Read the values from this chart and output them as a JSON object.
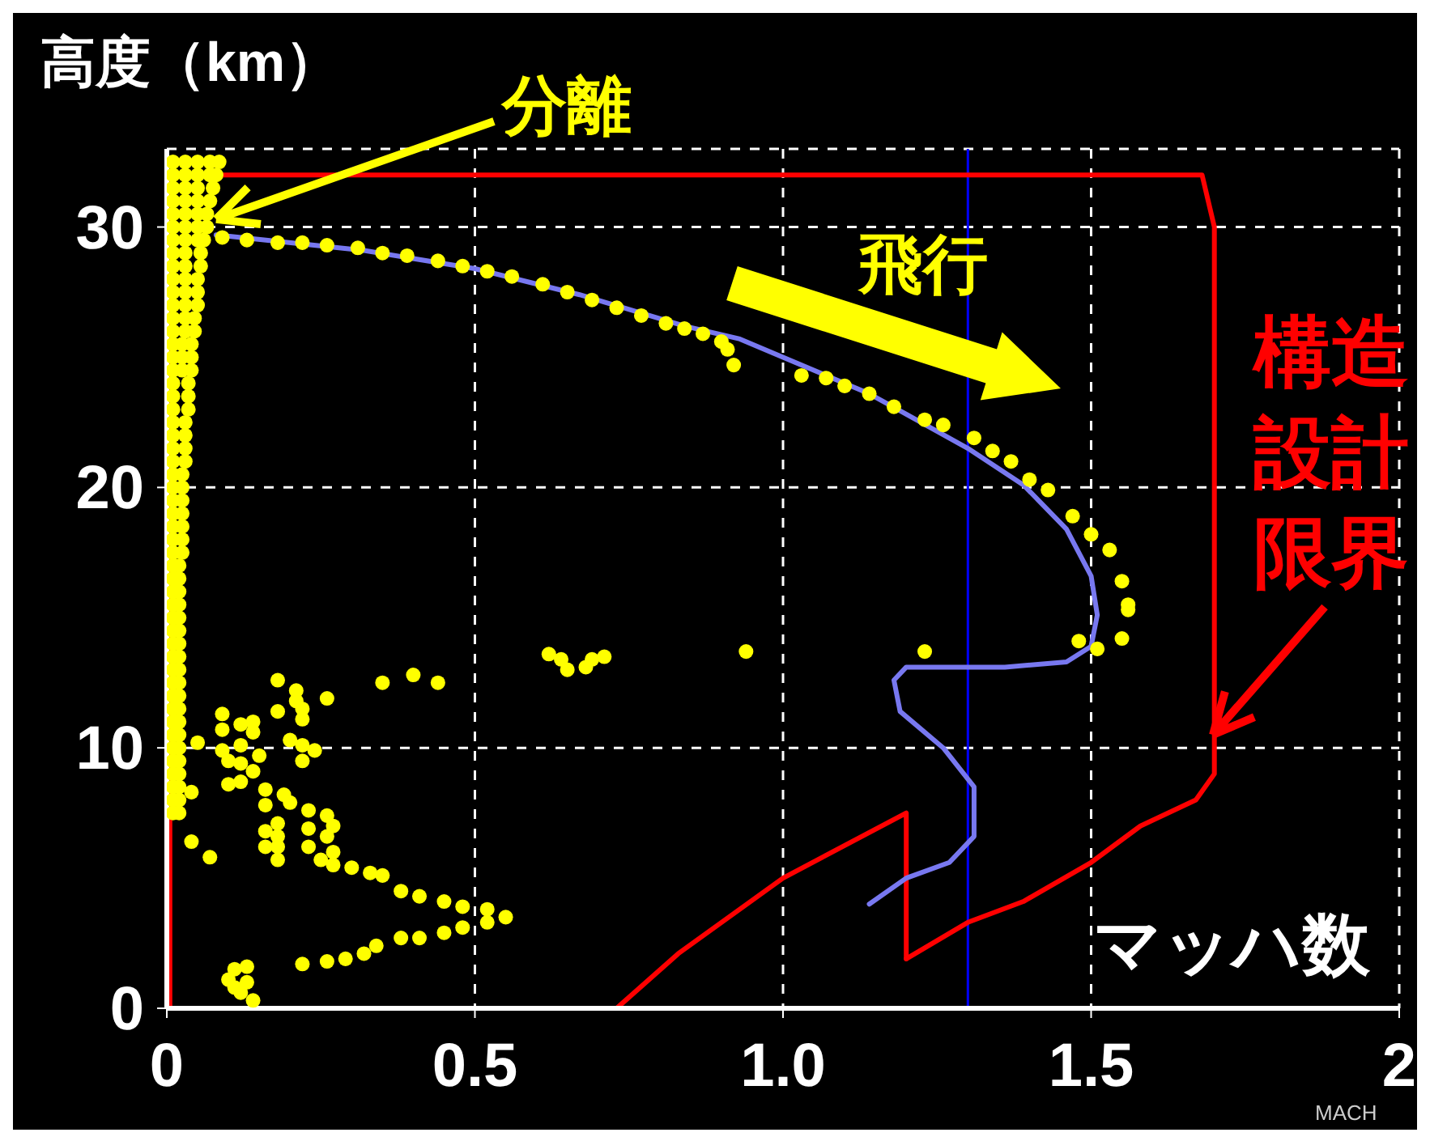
{
  "chart_data": {
    "type": "scatter",
    "ylabel": "高度（km）",
    "xlabel": "マッハ数",
    "annotations": [
      {
        "text": "分離",
        "x": 0.08,
        "y": 30.3
      },
      "飛行",
      "構造設計限界",
      "MACH"
    ],
    "xlim": [
      0,
      2
    ],
    "xticks": [
      0,
      0.5,
      {
        "value": 1,
        "label": "1.0"
      },
      1.5,
      2
    ],
    "ylim": [
      0,
      33
    ],
    "yticks": [
      0,
      10,
      20,
      30
    ],
    "grid": true,
    "marker": "circle",
    "line_style": "solid",
    "ref_lines": [
      {
        "axis": "x",
        "value": 1.3,
        "color": "#0000ff"
      }
    ],
    "series": [
      {
        "type": "line",
        "marker": "none",
        "color": "#ff0000",
        "x": [
          0.005,
          0.005,
          1.68,
          1.7,
          1.7,
          1.67,
          1.58,
          1.5,
          1.39,
          1.3,
          1.2
        ],
        "values": [
          0,
          32.0,
          32.0,
          30.0,
          9.0,
          8.0,
          7.0,
          5.6,
          4.1,
          3.3,
          1.9
        ]
      },
      {
        "type": "line",
        "marker": "none",
        "color": "#ff0000",
        "x": [
          0.005,
          0.73,
          0.83,
          1.0,
          1.2,
          1.2
        ],
        "values": [
          0,
          0,
          2.1,
          5.0,
          7.5,
          1.9
        ]
      },
      {
        "type": "line",
        "marker": "none",
        "color": "#7878f0",
        "x": [
          0.08,
          0.32,
          0.5,
          0.67,
          0.84,
          0.93,
          1.0,
          1.14,
          1.3,
          1.39,
          1.46,
          1.5,
          1.51,
          1.5,
          1.46,
          1.36,
          1.2,
          1.18,
          1.19,
          1.26,
          1.31,
          1.31,
          1.27,
          1.2,
          1.14
        ],
        "values": [
          29.7,
          29.1,
          28.4,
          27.4,
          26.2,
          25.7,
          25.0,
          23.6,
          21.5,
          20.1,
          18.4,
          16.6,
          15.1,
          13.9,
          13.3,
          13.1,
          13.1,
          12.6,
          11.4,
          10.0,
          8.5,
          6.6,
          5.6,
          5.0,
          4.0
        ]
      },
      {
        "type": "scatter",
        "color": "#ffff00",
        "x": [
          0.01,
          0.03,
          0.05,
          0.07,
          0.085,
          0.01,
          0.03,
          0.05,
          0.07,
          0.08,
          0.01,
          0.03,
          0.05,
          0.075,
          0.01,
          0.03,
          0.05,
          0.07,
          0.01,
          0.03,
          0.05,
          0.065,
          0.01,
          0.03,
          0.05,
          0.065,
          0.01,
          0.03,
          0.05,
          0.06,
          0.01,
          0.03,
          0.055,
          0.01,
          0.03,
          0.055,
          0.01,
          0.03,
          0.05,
          0.01,
          0.03,
          0.05,
          0.01,
          0.03,
          0.05,
          0.01,
          0.03,
          0.045,
          0.01,
          0.03,
          0.045,
          0.01,
          0.025,
          0.04,
          0.01,
          0.025,
          0.04,
          0.01,
          0.025,
          0.04,
          0.01,
          0.035,
          0.01,
          0.035,
          0.01,
          0.035,
          0.01,
          0.03,
          0.01,
          0.03,
          0.01,
          0.03,
          0.01,
          0.03,
          0.01,
          0.025,
          0.01,
          0.025,
          0.01,
          0.025,
          0.01,
          0.025,
          0.01,
          0.025,
          0.01,
          0.025,
          0.01,
          0.025,
          0.01,
          0.02,
          0.01,
          0.02,
          0.01,
          0.02,
          0.01,
          0.02,
          0.01,
          0.02,
          0.01,
          0.02,
          0.01,
          0.02,
          0.01,
          0.02,
          0.01,
          0.02,
          0.01,
          0.02,
          0.01,
          0.02,
          0.01,
          0.02,
          0.01,
          0.02,
          0.01,
          0.02,
          0.01,
          0.02,
          0.01,
          0.02,
          0.01,
          0.02,
          0.01,
          0.02,
          0.01,
          0.02,
          0.01,
          0.02
        ],
        "values": [
          32.5,
          32.5,
          32.5,
          32.5,
          32.5,
          32,
          32,
          32,
          32,
          32,
          31.5,
          31.5,
          31.5,
          31.5,
          31,
          31,
          31,
          31,
          30.5,
          30.5,
          30.5,
          30.5,
          30,
          30,
          30,
          30,
          29.5,
          29.5,
          29.5,
          29.5,
          29,
          29,
          29,
          28.5,
          28.5,
          28.5,
          28,
          28,
          28,
          27.5,
          27.5,
          27.5,
          27,
          27,
          27,
          26.5,
          26.5,
          26.5,
          26,
          26,
          26,
          25.5,
          25.5,
          25.5,
          25,
          25,
          25,
          24.5,
          24.5,
          24.5,
          24,
          24,
          23.5,
          23.5,
          23,
          23,
          22.5,
          22.5,
          22,
          22,
          21.5,
          21.5,
          21,
          21,
          20.5,
          20.5,
          20,
          20,
          19.5,
          19.5,
          19,
          19,
          18.5,
          18.5,
          18,
          18,
          17.5,
          17.5,
          17,
          17,
          16.5,
          16.5,
          16,
          16,
          15.5,
          15.5,
          15,
          15,
          14.5,
          14.5,
          14,
          14,
          13.5,
          13.5,
          13,
          13,
          12.5,
          12.5,
          12,
          12,
          11.5,
          11.5,
          11,
          11,
          10.5,
          10.5,
          10,
          10,
          9.5,
          9.5,
          9,
          9,
          8.5,
          8.5,
          8,
          8,
          7.5,
          7.5
        ]
      },
      {
        "type": "scatter",
        "color": "#ffff00",
        "x": [
          0.09,
          0.13,
          0.18,
          0.22,
          0.26,
          0.31,
          0.35,
          0.39,
          0.44,
          0.48,
          0.52,
          0.56,
          0.61,
          0.65,
          0.69,
          0.73,
          0.77,
          0.81,
          0.84,
          0.87,
          0.9,
          0.91,
          0.92,
          1.03,
          1.07,
          1.1,
          1.14,
          1.18,
          1.23,
          1.26,
          1.31,
          1.34,
          1.37,
          1.4,
          1.43,
          1.47,
          1.5,
          1.53,
          1.55,
          1.56,
          1.56,
          1.55,
          1.51,
          1.48,
          0.94,
          1.23,
          0.62,
          0.64,
          0.65,
          0.68,
          0.69,
          0.71,
          0.35,
          0.4,
          0.44,
          0.18,
          0.26,
          0.21,
          0.22,
          0.21,
          0.22,
          0.18,
          0.09,
          0.09,
          0.12,
          0.14,
          0.14,
          0.05,
          0.12,
          0.2,
          0.22,
          0.24,
          0.09,
          0.1,
          0.15,
          0.22,
          0.12,
          0.14,
          0.12,
          0.1,
          0.04,
          0.16,
          0.19,
          0.2,
          0.16,
          0.23,
          0.26,
          0.27,
          0.18,
          0.16,
          0.23,
          0.18,
          0.26,
          0.16,
          0.18,
          0.23,
          0.27,
          0.04,
          0.07,
          0.18,
          0.25,
          0.27,
          0.3,
          0.33,
          0.35,
          0.38,
          0.41,
          0.45,
          0.48,
          0.52,
          0.55,
          0.52,
          0.48,
          0.45,
          0.41,
          0.38,
          0.34,
          0.32,
          0.29,
          0.26,
          0.22,
          0.11,
          0.13,
          0.1,
          0.13,
          0.12,
          0.14,
          0.11
        ],
        "values": [
          29.6,
          29.5,
          29.4,
          29.4,
          29.3,
          29.2,
          29.0,
          28.9,
          28.7,
          28.5,
          28.3,
          28.1,
          27.8,
          27.5,
          27.2,
          26.9,
          26.6,
          26.3,
          26.1,
          25.9,
          25.6,
          25.3,
          24.7,
          24.3,
          24.2,
          23.9,
          23.6,
          23.1,
          22.6,
          22.4,
          21.9,
          21.4,
          21.0,
          20.3,
          19.9,
          18.9,
          18.2,
          17.6,
          16.4,
          15.5,
          15.3,
          14.2,
          13.8,
          14.1,
          13.7,
          13.7,
          13.6,
          13.4,
          13.0,
          13.1,
          13.4,
          13.5,
          12.5,
          12.8,
          12.5,
          12.6,
          11.9,
          12.2,
          11.5,
          11.8,
          11.1,
          11.4,
          11.3,
          10.7,
          10.9,
          11.0,
          10.6,
          10.2,
          10.1,
          10.3,
          10.1,
          9.9,
          9.9,
          9.5,
          9.7,
          9.5,
          9.4,
          9.1,
          8.7,
          8.6,
          8.3,
          8.4,
          8.2,
          7.9,
          7.8,
          7.6,
          7.4,
          7.0,
          7.1,
          6.8,
          6.9,
          6.6,
          6.6,
          6.2,
          6.2,
          6.2,
          6.0,
          6.4,
          5.8,
          5.7,
          5.7,
          5.5,
          5.4,
          5.2,
          5.1,
          4.5,
          4.3,
          4.1,
          3.9,
          3.8,
          3.5,
          3.3,
          3.1,
          2.9,
          2.7,
          2.7,
          2.4,
          2.1,
          1.9,
          1.8,
          1.7,
          1.5,
          1.6,
          1.1,
          1.0,
          0.6,
          0.3,
          0.8
        ]
      }
    ]
  }
}
